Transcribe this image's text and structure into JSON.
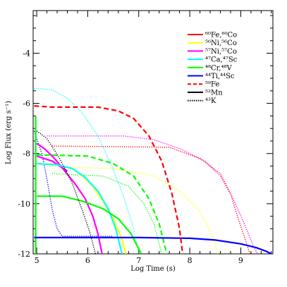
{
  "chart_data": {
    "type": "line",
    "xlabel": "Log Time (s)",
    "ylabel": "Log Flux (erg s⁻¹)",
    "xlim": [
      4.93,
      9.63
    ],
    "ylim": [
      -12,
      -2.3
    ],
    "log_scale": true,
    "grid": false,
    "legend_position": "top-right",
    "x_ticks": [
      5,
      6,
      7,
      8,
      9
    ],
    "x_tick_labels": [
      "5",
      "6",
      "7",
      "8",
      "9"
    ],
    "y_ticks": [
      -12,
      -10,
      -8,
      -6,
      -4
    ],
    "y_tick_labels": [
      "-12",
      "-10",
      "-8",
      "-6",
      "-4"
    ],
    "series": [
      {
        "name": "⁶⁰Fe,⁶⁰Co",
        "color": "#ff0000",
        "dash": "solid",
        "points": []
      },
      {
        "name": "⁵⁶Ni,⁵⁶Co",
        "color": "#ffff00",
        "dash": "solid",
        "points": [
          [
            5.0,
            -8.4
          ],
          [
            5.4,
            -8.45
          ],
          [
            5.7,
            -8.6
          ],
          [
            5.9,
            -8.9
          ],
          [
            6.1,
            -9.3
          ],
          [
            6.3,
            -9.9
          ],
          [
            6.5,
            -10.6
          ],
          [
            6.65,
            -11.3
          ],
          [
            6.75,
            -12.0
          ]
        ]
      },
      {
        "name": "⁵⁷Ni,⁵⁷Co",
        "color": "#ff00ff",
        "dash": "solid",
        "points": [
          [
            5.0,
            -7.6
          ],
          [
            5.15,
            -7.8
          ],
          [
            5.35,
            -8.2
          ],
          [
            5.55,
            -8.7
          ],
          [
            5.75,
            -9.2
          ],
          [
            5.95,
            -9.8
          ],
          [
            6.1,
            -10.5
          ],
          [
            6.2,
            -11.2
          ],
          [
            6.28,
            -12.0
          ]
        ]
      },
      {
        "name": "⁴⁷Ca,⁴⁷Sc",
        "color": "#00ffff",
        "dash": "solid",
        "points": [
          [
            5.0,
            -8.4
          ],
          [
            5.4,
            -8.45
          ],
          [
            5.7,
            -8.6
          ],
          [
            5.95,
            -8.95
          ],
          [
            6.2,
            -9.5
          ],
          [
            6.4,
            -10.2
          ],
          [
            6.55,
            -11.0
          ],
          [
            6.67,
            -12.0
          ]
        ]
      },
      {
        "name": "⁴⁸Cr,⁴⁸V",
        "color": "#00ff00",
        "dash": "solid",
        "points": [
          [
            5.0,
            -9.7
          ],
          [
            5.5,
            -9.7
          ],
          [
            5.9,
            -9.9
          ],
          [
            6.3,
            -10.2
          ],
          [
            6.6,
            -10.6
          ],
          [
            6.85,
            -11.2
          ],
          [
            7.0,
            -11.8
          ],
          [
            7.05,
            -12.0
          ]
        ]
      },
      {
        "name": "⁴⁴Ti,⁴⁴Sc",
        "color": "#0000ff",
        "dash": "solid",
        "points": [
          [
            4.95,
            -11.35
          ],
          [
            7.0,
            -11.35
          ],
          [
            8.0,
            -11.38
          ],
          [
            8.5,
            -11.45
          ],
          [
            9.0,
            -11.6
          ],
          [
            9.3,
            -11.75
          ],
          [
            9.5,
            -11.9
          ],
          [
            9.6,
            -12.0
          ]
        ]
      },
      {
        "name": "⁵⁹Fe",
        "color": "#ff0000",
        "dash": "dashed",
        "points": [
          [
            4.95,
            -6.1
          ],
          [
            5.3,
            -6.15
          ],
          [
            6.2,
            -6.15
          ],
          [
            6.6,
            -6.3
          ],
          [
            6.9,
            -6.6
          ],
          [
            7.2,
            -7.3
          ],
          [
            7.45,
            -8.3
          ],
          [
            7.65,
            -9.6
          ],
          [
            7.8,
            -11.0
          ],
          [
            7.86,
            -12.0
          ]
        ]
      },
      {
        "name": "⁵²Mn",
        "color": "#000000",
        "dash": "solid",
        "points": []
      },
      {
        "name": "⁴³K",
        "color": "#000000",
        "dash": "dotted",
        "points": [
          [
            5.0,
            -7.1
          ],
          [
            5.2,
            -7.4
          ],
          [
            5.45,
            -8.2
          ],
          [
            5.7,
            -9.2
          ],
          [
            5.9,
            -10.3
          ],
          [
            6.05,
            -11.2
          ],
          [
            6.15,
            -12.0
          ]
        ]
      }
    ],
    "extra_curves": [
      {
        "series": "⁴³K",
        "color": "#000000",
        "dash": "solid",
        "points": []
      },
      {
        "color": "#00ffff",
        "dash": "dotted",
        "points": [
          [
            4.95,
            -5.4
          ],
          [
            5.3,
            -5.45
          ],
          [
            5.6,
            -5.8
          ],
          [
            5.9,
            -6.4
          ],
          [
            6.2,
            -7.3
          ],
          [
            6.45,
            -8.4
          ],
          [
            6.7,
            -9.7
          ],
          [
            6.9,
            -11.0
          ],
          [
            7.0,
            -12.0
          ]
        ]
      },
      {
        "color": "#0000ff",
        "dash": "dotted",
        "points": [
          [
            4.95,
            -7.1
          ],
          [
            5.1,
            -8.0
          ],
          [
            5.2,
            -9.0
          ],
          [
            5.3,
            -10.2
          ],
          [
            5.4,
            -11.0
          ],
          [
            5.5,
            -11.3
          ],
          [
            6.5,
            -11.3
          ]
        ]
      },
      {
        "color": "#ff00ff",
        "dash": "dotted",
        "points": [
          [
            5.2,
            -7.3
          ],
          [
            6.7,
            -7.3
          ],
          [
            7.3,
            -7.45
          ],
          [
            7.8,
            -7.8
          ],
          [
            8.3,
            -8.3
          ],
          [
            8.6,
            -8.9
          ],
          [
            8.85,
            -9.8
          ],
          [
            9.05,
            -10.7
          ],
          [
            9.25,
            -11.7
          ],
          [
            9.33,
            -12.0
          ]
        ]
      },
      {
        "color": "#ff0000",
        "dash": "dotted",
        "points": [
          [
            5.3,
            -7.7
          ],
          [
            7.6,
            -7.75
          ],
          [
            8.2,
            -8.2
          ],
          [
            8.6,
            -8.8
          ],
          [
            8.8,
            -9.6
          ],
          [
            8.95,
            -10.6
          ],
          [
            9.1,
            -11.5
          ],
          [
            9.18,
            -12.0
          ]
        ]
      },
      {
        "color": "#ffff00",
        "dash": "dotted",
        "points": [
          [
            5.2,
            -8.5
          ],
          [
            6.5,
            -8.6
          ],
          [
            7.3,
            -8.9
          ],
          [
            7.8,
            -9.5
          ],
          [
            8.2,
            -10.3
          ],
          [
            8.45,
            -11.3
          ],
          [
            8.55,
            -12.0
          ]
        ]
      },
      {
        "color": "#00ff00",
        "dash": "dashed",
        "points": [
          [
            5.0,
            -8.05
          ],
          [
            6.0,
            -8.1
          ],
          [
            6.5,
            -8.4
          ],
          [
            6.9,
            -8.9
          ],
          [
            7.2,
            -9.8
          ],
          [
            7.4,
            -10.8
          ],
          [
            7.55,
            -12.0
          ]
        ]
      },
      {
        "color": "#00ff00",
        "dash": "dotted",
        "points": [
          [
            5.3,
            -8.8
          ],
          [
            6.3,
            -8.9
          ],
          [
            6.8,
            -9.3
          ],
          [
            7.1,
            -10.0
          ],
          [
            7.3,
            -10.8
          ],
          [
            7.45,
            -12.0
          ]
        ]
      },
      {
        "color": "#ff00ff",
        "dash": "solid",
        "points": [
          [
            5.0,
            -8.1
          ],
          [
            5.3,
            -8.3
          ],
          [
            5.6,
            -8.7
          ]
        ]
      },
      {
        "color": "#00ff00",
        "dash": "solid",
        "points": [
          [
            4.98,
            -6.5
          ],
          [
            4.98,
            -12.0
          ]
        ]
      }
    ]
  }
}
